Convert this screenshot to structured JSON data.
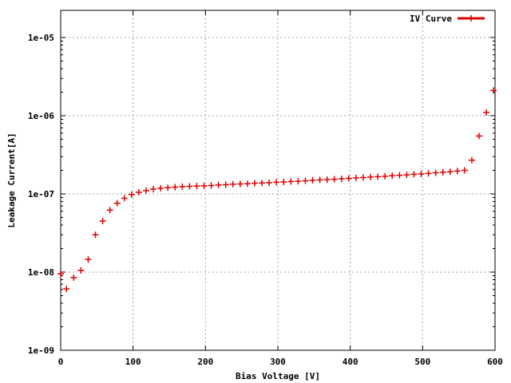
{
  "chart_data": {
    "type": "scatter",
    "title": "",
    "xlabel": "Bias Voltage [V]",
    "ylabel": "Leakage Current[A]",
    "xlim": [
      0,
      600
    ],
    "ylim": [
      1e-09,
      2e-05
    ],
    "y_scale": "log",
    "grid": true,
    "legend_position": "top-right",
    "x_ticks": [
      0,
      100,
      200,
      300,
      400,
      500,
      600
    ],
    "x_tick_labels": [
      "0",
      "100",
      "200",
      "300",
      "400",
      "500",
      "600"
    ],
    "y_ticks": [
      1e-09,
      1e-08,
      1e-07,
      1e-06,
      1e-05
    ],
    "y_tick_labels": [
      "1e-09",
      "1e-08",
      "1e-07",
      "1e-06",
      "1e-05"
    ],
    "series": [
      {
        "name": "IV Curve",
        "color": "#dd0000",
        "marker": "plus",
        "x": [
          0,
          8,
          18,
          28,
          38,
          48,
          58,
          68,
          78,
          88,
          98,
          108,
          118,
          128,
          138,
          148,
          158,
          168,
          178,
          188,
          198,
          208,
          218,
          228,
          238,
          248,
          258,
          268,
          278,
          288,
          298,
          308,
          318,
          328,
          338,
          348,
          358,
          368,
          378,
          388,
          398,
          408,
          418,
          428,
          438,
          448,
          458,
          468,
          478,
          488,
          498,
          508,
          518,
          528,
          538,
          548,
          558,
          568,
          578,
          588,
          598
        ],
        "y": [
          9.5e-09,
          6.1e-09,
          8.5e-09,
          1.05e-08,
          1.45e-08,
          3e-08,
          4.5e-08,
          6.2e-08,
          7.6e-08,
          8.8e-08,
          9.8e-08,
          1.05e-07,
          1.1e-07,
          1.15e-07,
          1.18e-07,
          1.2e-07,
          1.22e-07,
          1.24e-07,
          1.25e-07,
          1.26e-07,
          1.27e-07,
          1.28e-07,
          1.3e-07,
          1.31e-07,
          1.33e-07,
          1.34e-07,
          1.35e-07,
          1.37e-07,
          1.38e-07,
          1.39e-07,
          1.41e-07,
          1.42e-07,
          1.44e-07,
          1.45e-07,
          1.47e-07,
          1.49e-07,
          1.51e-07,
          1.52e-07,
          1.54e-07,
          1.56e-07,
          1.58e-07,
          1.6e-07,
          1.62e-07,
          1.64e-07,
          1.66e-07,
          1.68e-07,
          1.71e-07,
          1.73e-07,
          1.75e-07,
          1.78e-07,
          1.8e-07,
          1.83e-07,
          1.86e-07,
          1.89e-07,
          1.92e-07,
          1.96e-07,
          2e-07,
          2.7e-07,
          5.5e-07,
          1.1e-06,
          2.1e-06
        ]
      }
    ]
  }
}
